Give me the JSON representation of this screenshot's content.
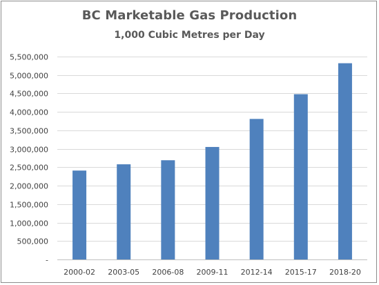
{
  "chart_data": {
    "type": "bar",
    "title": "BC Marketable Gas Production",
    "subtitle": "1,000 Cubic Metres per Day",
    "categories": [
      "2000-02",
      "2003-05",
      "2006-08",
      "2009-11",
      "2012-14",
      "2015-17",
      "2018-20"
    ],
    "series": [
      {
        "values": [
          2410000,
          2580000,
          2690000,
          3050000,
          3810000,
          4480000,
          5320000
        ]
      }
    ],
    "ylim": [
      0,
      5500000
    ],
    "yticks": [
      0,
      500000,
      1000000,
      1500000,
      2000000,
      2500000,
      3000000,
      3500000,
      4000000,
      4500000,
      5000000,
      5500000
    ],
    "ytick_labels": [
      "-",
      "500,000",
      "1,000,000",
      "1,500,000",
      "2,000,000",
      "2,500,000",
      "3,000,000",
      "3,500,000",
      "4,000,000",
      "4,500,000",
      "5,000,000",
      "5,500,000"
    ],
    "grid": true,
    "colors": {
      "bar": "#4f81bd",
      "grid": "#d9d9d9",
      "axis": "#bfbfbf"
    }
  }
}
